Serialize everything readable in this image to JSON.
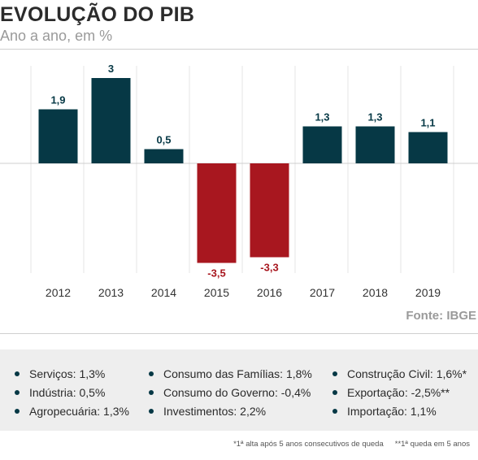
{
  "header": {
    "title": "EVOLUÇÃO DO PIB",
    "subtitle": "Ano a ano, em %"
  },
  "source": "Fonte: IBGE",
  "colors": {
    "positive": "#063845",
    "negative": "#a8171f",
    "grid": "#e4e4e4",
    "baseline": "#cfcfcf"
  },
  "chart_data": {
    "type": "bar",
    "categories": [
      "2012",
      "2013",
      "2014",
      "2015",
      "2016",
      "2017",
      "2018",
      "2019"
    ],
    "values": [
      1.9,
      3,
      0.5,
      -3.5,
      -3.3,
      1.3,
      1.3,
      1.1
    ],
    "labels": [
      "1,9",
      "3",
      "0,5",
      "-3,5",
      "-3,3",
      "1,3",
      "1,3",
      "1,1"
    ],
    "title": "EVOLUÇÃO DO PIB",
    "subtitle": "Ano a ano, em %",
    "xlabel": "",
    "ylabel": "",
    "ylim": [
      -3.8,
      3.2
    ],
    "grid": "vertical",
    "legend": "none"
  },
  "legend": {
    "col1": [
      "Serviços: 1,3%",
      "Indústria: 0,5%",
      "Agropecuária: 1,3%"
    ],
    "col2": [
      "Consumo das Famílias: 1,8%",
      "Consumo do Governo: -0,4%",
      "Investimentos: 2,2%"
    ],
    "col3": [
      "Construção Civil: 1,6%*",
      "Exportação: -2,5%**",
      "Importação: 1,1%"
    ]
  },
  "notes": {
    "note1": "*1ª alta após 5 anos consecutivos de queda",
    "note2": "**1ª queda em 5 anos"
  }
}
